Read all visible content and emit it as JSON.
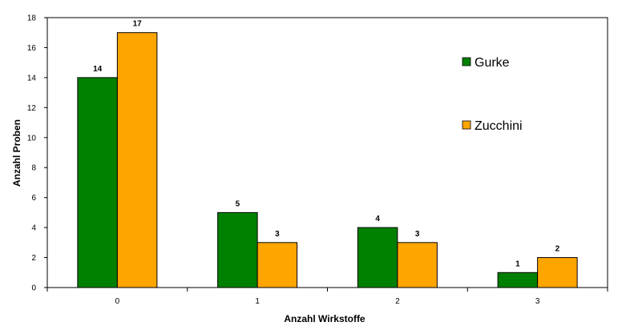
{
  "chart_data": {
    "type": "bar",
    "title": "",
    "xlabel": "Anzahl Wirkstoffe",
    "ylabel": "Anzahl Proben",
    "categories": [
      "0",
      "1",
      "2",
      "3"
    ],
    "ylim": [
      0,
      18
    ],
    "yticks": [
      0,
      2,
      4,
      6,
      8,
      10,
      12,
      14,
      16,
      18
    ],
    "grid": false,
    "legend_position": "right",
    "series": [
      {
        "name": "Gurke",
        "color": "#008000",
        "values": [
          14,
          5,
          4,
          1
        ]
      },
      {
        "name": "Zucchini",
        "color": "#FFA500",
        "values": [
          17,
          3,
          3,
          2
        ]
      }
    ]
  }
}
